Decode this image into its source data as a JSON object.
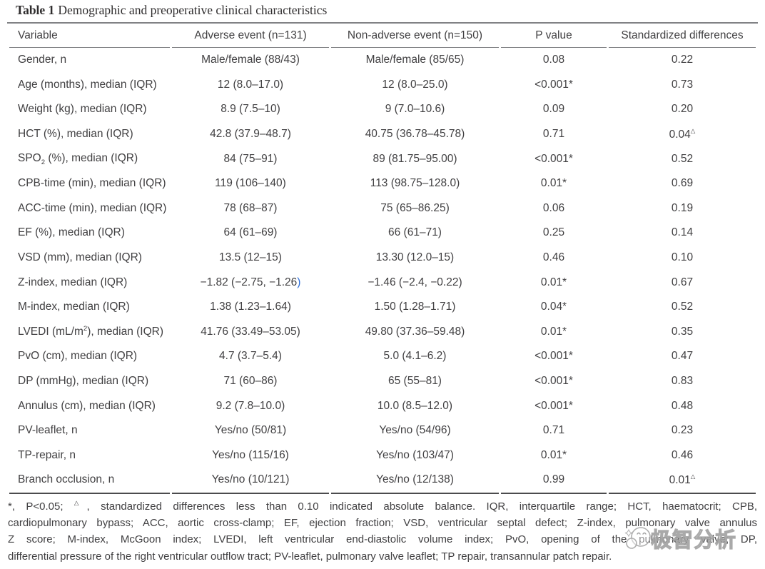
{
  "title": {
    "label": "Table 1",
    "caption": "Demographic and preoperative clinical characteristics"
  },
  "table": {
    "columns": [
      {
        "key": "variable",
        "label": "Variable"
      },
      {
        "key": "adverse",
        "label": "Adverse event (n=131)"
      },
      {
        "key": "non-adverse",
        "label": "Non-adverse event (n=150)"
      },
      {
        "key": "p-value",
        "label": "P value"
      },
      {
        "key": "std-diff",
        "label": "Standardized differences"
      }
    ],
    "rows": [
      [
        {
          "text": "Gender, n"
        },
        {
          "text": "Male/female (88/43)"
        },
        {
          "text": "Male/female (85/65)"
        },
        {
          "text": "0.08"
        },
        {
          "text": "0.22"
        }
      ],
      [
        {
          "text": "Age (months), median (IQR)"
        },
        {
          "text": "12 (8.0–17.0)"
        },
        {
          "text": "12 (8.0–25.0)"
        },
        {
          "text": "<0.001*"
        },
        {
          "text": "0.73"
        }
      ],
      [
        {
          "text": "Weight (kg), median (IQR)"
        },
        {
          "text": "8.9 (7.5–10)"
        },
        {
          "text": "9 (7.0–10.6)"
        },
        {
          "text": "0.09"
        },
        {
          "text": "0.20"
        }
      ],
      [
        {
          "text": "HCT (%), median (IQR)"
        },
        {
          "text": "42.8 (37.9–48.7)"
        },
        {
          "text": "40.75 (36.78–45.78)"
        },
        {
          "text": "0.71"
        },
        {
          "html": "0.04<sup class=\"tri\">△</sup>"
        }
      ],
      [
        {
          "html": "SPO<sub>2</sub> (%), median (IQR)"
        },
        {
          "text": "84 (75–91)"
        },
        {
          "text": "89 (81.75–95.00)"
        },
        {
          "text": "<0.001*"
        },
        {
          "text": "0.52"
        }
      ],
      [
        {
          "text": "CPB-time (min), median (IQR)"
        },
        {
          "text": "119 (106–140)"
        },
        {
          "text": "113 (98.75–128.0)"
        },
        {
          "text": "0.01*"
        },
        {
          "text": "0.69"
        }
      ],
      [
        {
          "text": "ACC-time (min), median (IQR)"
        },
        {
          "text": "78 (68–87)"
        },
        {
          "text": "75 (65–86.25)"
        },
        {
          "text": "0.06"
        },
        {
          "text": "0.19"
        }
      ],
      [
        {
          "text": "EF (%), median (IQR)"
        },
        {
          "text": "64 (61–69)"
        },
        {
          "text": "66 (61–71)"
        },
        {
          "text": "0.25"
        },
        {
          "text": "0.14"
        }
      ],
      [
        {
          "text": "VSD (mm), median (IQR)"
        },
        {
          "text": "13.5 (12–15)"
        },
        {
          "text": "13.30 (12.0–15)"
        },
        {
          "text": "0.46"
        },
        {
          "text": "0.10"
        }
      ],
      [
        {
          "text": "Z-index, median (IQR)"
        },
        {
          "html": "−1.82 (−2.75, −1.26<span class=\"paren-blue\">)</span>"
        },
        {
          "text": "−1.46 (−2.4, −0.22)"
        },
        {
          "text": "0.01*"
        },
        {
          "text": "0.67"
        }
      ],
      [
        {
          "text": "M-index, median (IQR)"
        },
        {
          "text": "1.38 (1.23–1.64)"
        },
        {
          "text": "1.50 (1.28–1.71)"
        },
        {
          "text": "0.04*"
        },
        {
          "text": "0.52"
        }
      ],
      [
        {
          "html": "LVEDI (mL/m<sup>2</sup>), median (IQR)"
        },
        {
          "text": "41.76 (33.49–53.05)"
        },
        {
          "text": "49.80 (37.36–59.48)"
        },
        {
          "text": "0.01*"
        },
        {
          "text": "0.35"
        }
      ],
      [
        {
          "text": "PvO (cm), median (IQR)"
        },
        {
          "text": "4.7 (3.7–5.4)"
        },
        {
          "text": "5.0 (4.1–6.2)"
        },
        {
          "text": "<0.001*"
        },
        {
          "text": "0.47"
        }
      ],
      [
        {
          "text": "DP (mmHg), median (IQR)"
        },
        {
          "text": "71 (60–86)"
        },
        {
          "text": "65 (55–81)"
        },
        {
          "text": "<0.001*"
        },
        {
          "text": "0.83"
        }
      ],
      [
        {
          "text": "Annulus (cm), median (IQR)"
        },
        {
          "text": "9.2 (7.8–10.0)"
        },
        {
          "text": "10.0 (8.5–12.0)"
        },
        {
          "text": "<0.001*"
        },
        {
          "text": "0.48"
        }
      ],
      [
        {
          "text": "PV-leaflet, n"
        },
        {
          "text": "Yes/no (50/81)"
        },
        {
          "text": "Yes/no (54/96)"
        },
        {
          "text": "0.71"
        },
        {
          "text": "0.23"
        }
      ],
      [
        {
          "text": "TP-repair, n"
        },
        {
          "text": "Yes/no (115/16)"
        },
        {
          "text": "Yes/no (103/47)"
        },
        {
          "text": "0.01*"
        },
        {
          "text": "0.46"
        }
      ],
      [
        {
          "text": "Branch occlusion, n"
        },
        {
          "text": "Yes/no (10/121)"
        },
        {
          "text": "Yes/no (12/138)"
        },
        {
          "text": "0.99"
        },
        {
          "html": "0.01<sup class=\"tri\">△</sup>"
        }
      ]
    ]
  },
  "footnote": {
    "lines": [
      "*, P&lt;0.05; <sup class=\"tri\">△</sup>, standardized differences less than 0.10 indicated absolute balance. IQR, interquartile range; HCT, haematocrit; CPB,",
      "cardiopulmonary bypass; ACC, aortic cross-clamp; EF, ejection fraction; VSD, ventricular septal defect; Z-index, pulmonary valve annulus",
      "Z score; M-index, McGoon index; LVEDI, left ventricular end-diastolic volume index; PvO, opening of the pulmonary valve; DP,",
      "differential pressure of the right ventricular outflow tract; PV-leaflet, pulmonary valve leaflet; TP repair, transannular patch repair."
    ]
  },
  "watermark": {
    "text": "极智分析"
  },
  "colors": {
    "body_text": "#414042",
    "rule_gray": "#818285",
    "rule_dark": "#4b4b4d",
    "link_blue": "#2e6fdb",
    "watermark_gray": "#a0a0a0"
  }
}
